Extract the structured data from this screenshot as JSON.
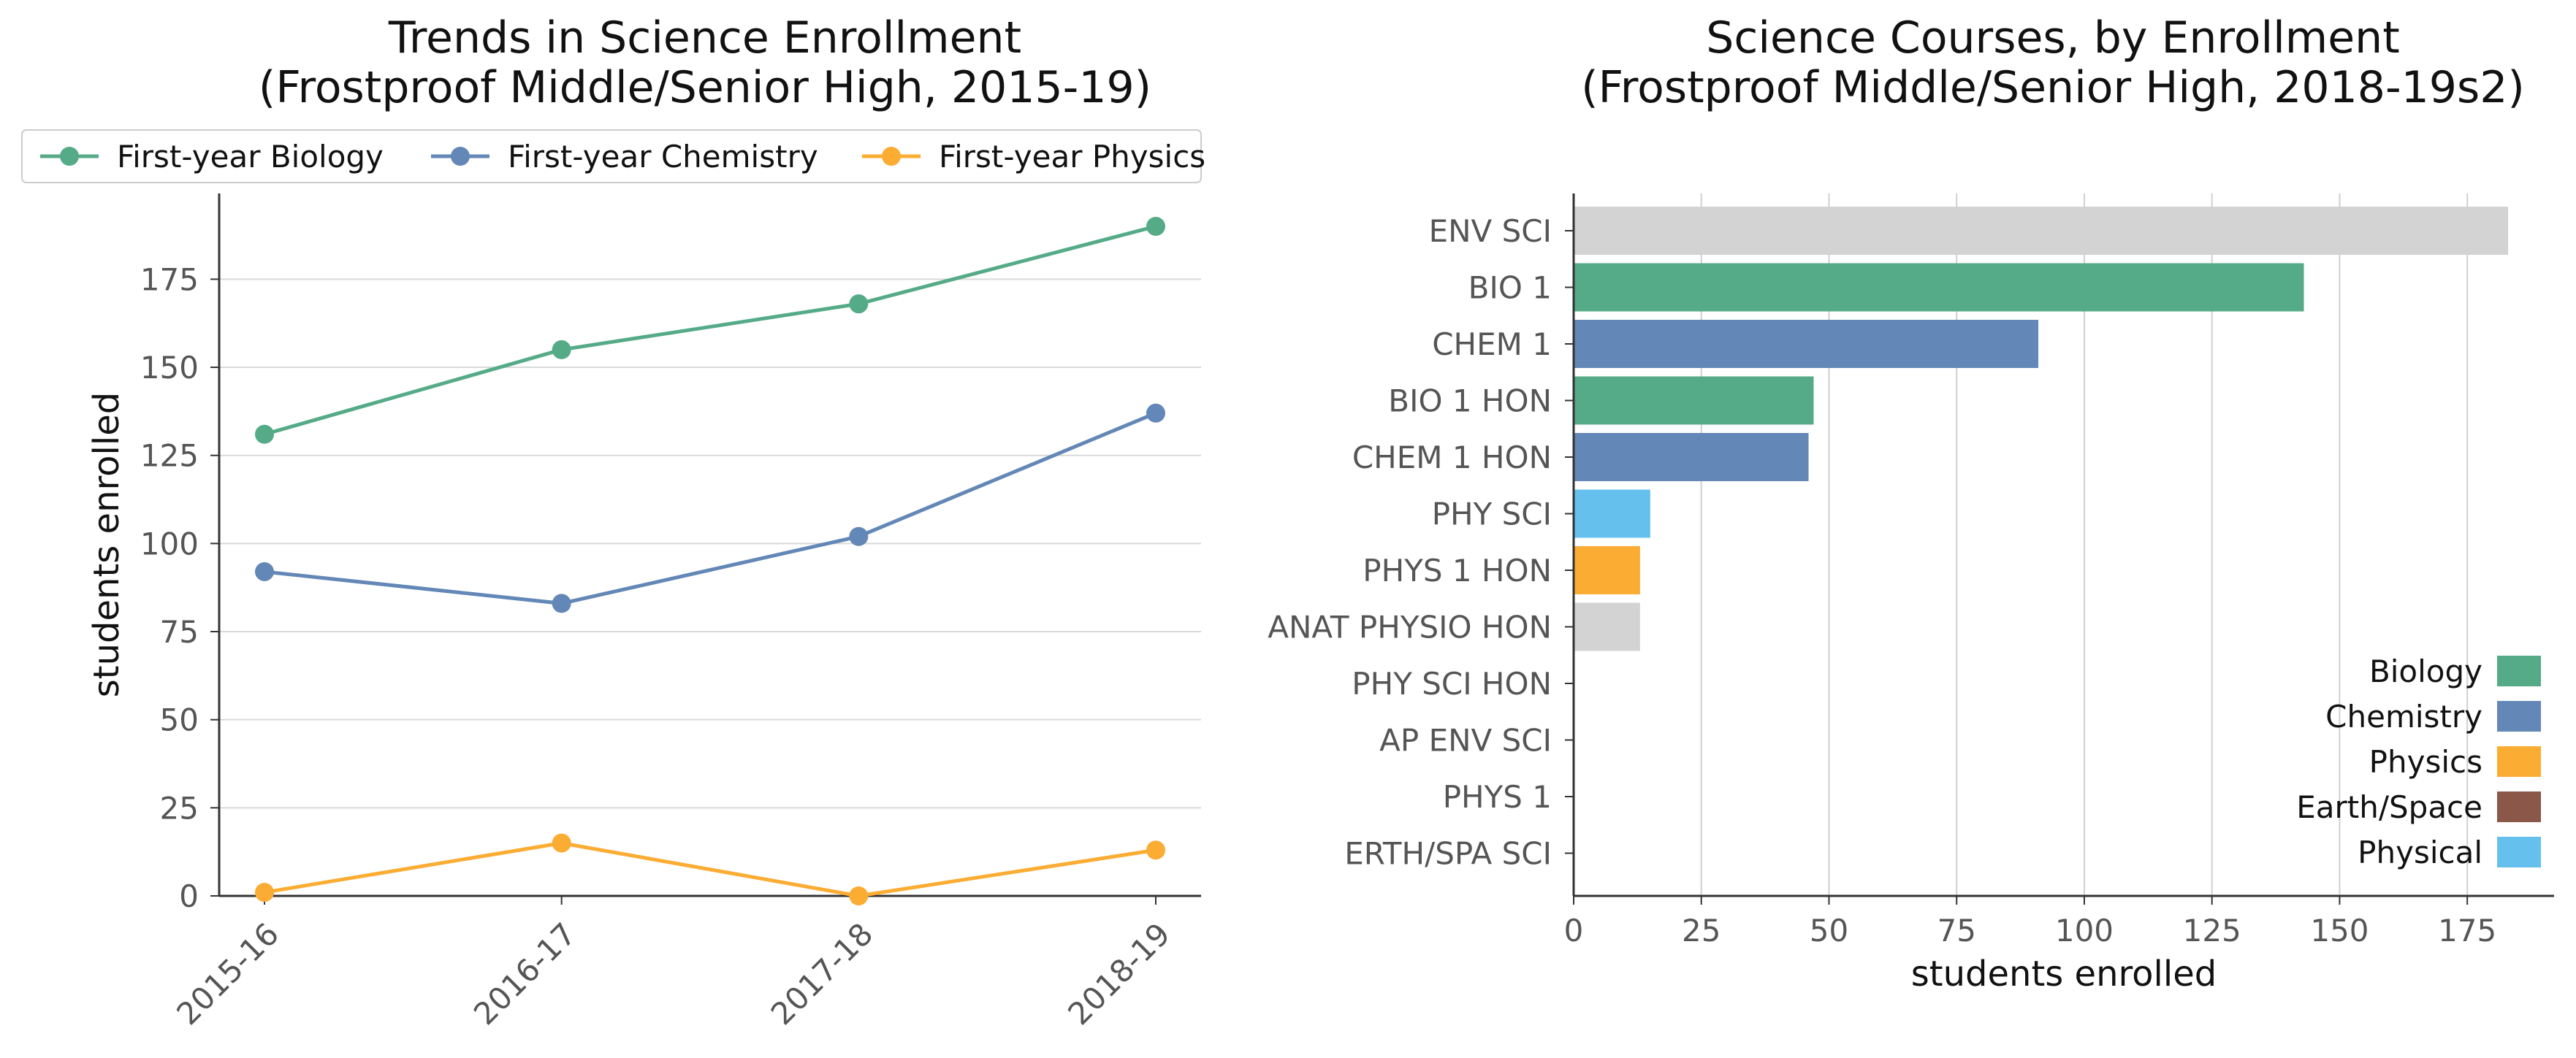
{
  "colors": {
    "biology": "#55ab87",
    "chemistry": "#6387b6",
    "physics": "#fbac33",
    "earth_space": "#8a5748",
    "physical": "#66c0ee",
    "other": "#d3d3d3"
  },
  "chart_data": [
    {
      "type": "line",
      "title": "Trends in Science Enrollment\n(Frostproof Middle/Senior High, 2015-19)",
      "categories": [
        "2015-16",
        "2016-17",
        "2017-18",
        "2018-19"
      ],
      "xlabel": "",
      "ylabel": "students enrolled",
      "ylim": [
        0,
        200
      ],
      "yticks": [
        0,
        25,
        50,
        75,
        100,
        125,
        150,
        175
      ],
      "grid": "horizontal",
      "legend": "top",
      "series": [
        {
          "name": "First-year Biology",
          "color": "#55ab87",
          "values": [
            131,
            155,
            168,
            190
          ]
        },
        {
          "name": "First-year Chemistry",
          "color": "#6387b6",
          "values": [
            92,
            83,
            102,
            137
          ]
        },
        {
          "name": "First-year Physics",
          "color": "#fbac33",
          "values": [
            1,
            15,
            0,
            13
          ]
        }
      ]
    },
    {
      "type": "bar",
      "orientation": "horizontal",
      "title": "Science Courses, by Enrollment\n(Frostproof Middle/Senior High, 2018-19s2)",
      "xlabel": "students enrolled",
      "ylabel": "",
      "xlim": [
        0,
        192
      ],
      "xticks": [
        0,
        25,
        50,
        75,
        100,
        125,
        150,
        175
      ],
      "grid": "vertical",
      "legend": "bottom-right",
      "categories": [
        "ENV SCI",
        "BIO 1",
        "CHEM 1",
        "BIO 1 HON",
        "CHEM 1 HON",
        "PHY SCI",
        "PHYS 1 HON",
        "ANAT PHYSIO HON",
        "PHY SCI HON",
        "AP ENV SCI",
        "PHYS 1",
        "ERTH/SPA SCI"
      ],
      "values": [
        183,
        143,
        91,
        47,
        46,
        15,
        13,
        13,
        0,
        0,
        0,
        0
      ],
      "bar_colors": [
        "#d3d3d3",
        "#55ab87",
        "#6387b6",
        "#55ab87",
        "#6387b6",
        "#66c0ee",
        "#fbac33",
        "#d3d3d3",
        "#d3d3d3",
        "#d3d3d3",
        "#d3d3d3",
        "#d3d3d3"
      ],
      "legend_entries": [
        {
          "name": "Biology",
          "color": "#55ab87"
        },
        {
          "name": "Chemistry",
          "color": "#6387b6"
        },
        {
          "name": "Physics",
          "color": "#fbac33"
        },
        {
          "name": "Earth/Space",
          "color": "#8a5748"
        },
        {
          "name": "Physical",
          "color": "#66c0ee"
        }
      ]
    }
  ]
}
